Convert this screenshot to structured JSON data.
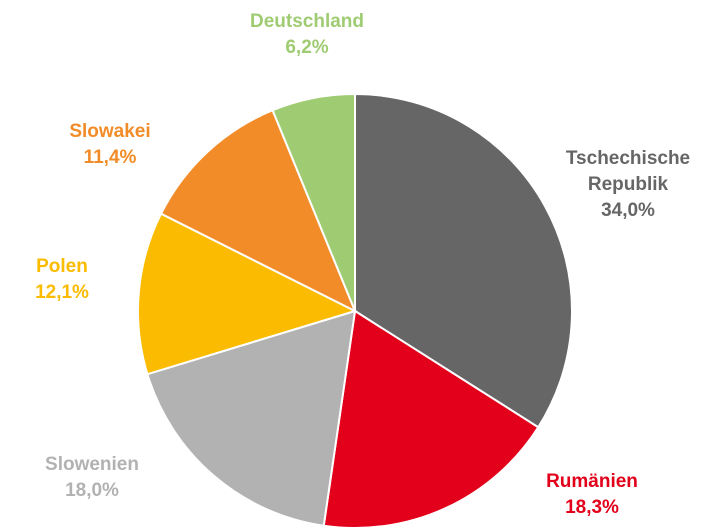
{
  "chart_data": {
    "type": "pie",
    "categories": [
      "Tschechische Republik",
      "Rumänien",
      "Slowenien",
      "Polen",
      "Slowakei",
      "Deutschland"
    ],
    "values": [
      34.0,
      18.3,
      18.0,
      12.1,
      11.4,
      6.2
    ],
    "value_labels": [
      "34,0%",
      "18,3%",
      "18,0%",
      "12,1%",
      "11,4%",
      "6,2%"
    ],
    "colors": [
      "#666666",
      "#e2001a",
      "#b2b2b2",
      "#fbbb00",
      "#f28c28",
      "#9fcc73"
    ]
  }
}
